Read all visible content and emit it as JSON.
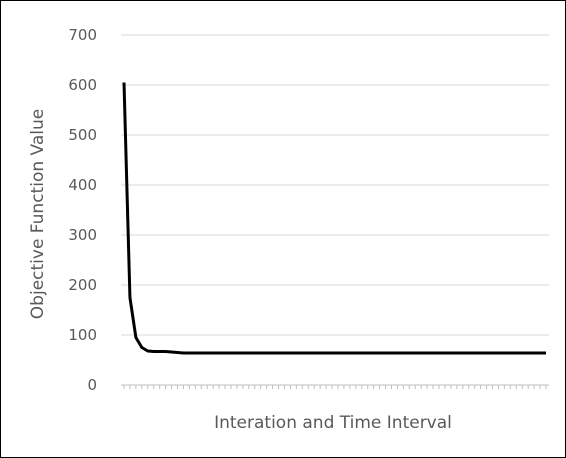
{
  "chart_data": {
    "type": "line",
    "title": "",
    "xlabel": "Interation and Time Interval",
    "ylabel": "Objective Function Value",
    "ylim": [
      0,
      700
    ],
    "y_ticks": [
      0,
      100,
      200,
      300,
      400,
      500,
      600,
      700
    ],
    "grid": true,
    "legend": "none",
    "series": [
      {
        "values": [
          605,
          175,
          95,
          75,
          68,
          67,
          67,
          67,
          66,
          65,
          64,
          64,
          64,
          64,
          64,
          64,
          64,
          64,
          64,
          64,
          64,
          64,
          64,
          64,
          64,
          64,
          64,
          64,
          64,
          64,
          64,
          64,
          64,
          64,
          64,
          64,
          64,
          64,
          64,
          64,
          64,
          64,
          64,
          64,
          64,
          64,
          64,
          64,
          64,
          64,
          64,
          64,
          64,
          64,
          64,
          64,
          64,
          64,
          64,
          64,
          64,
          64,
          64,
          64,
          64,
          64,
          64,
          64,
          64,
          64,
          64,
          64
        ]
      }
    ],
    "colors": {
      "line": "#000000",
      "grid": "#d9d9d9",
      "axis": "#bfbfbf",
      "text": "#595959"
    }
  }
}
